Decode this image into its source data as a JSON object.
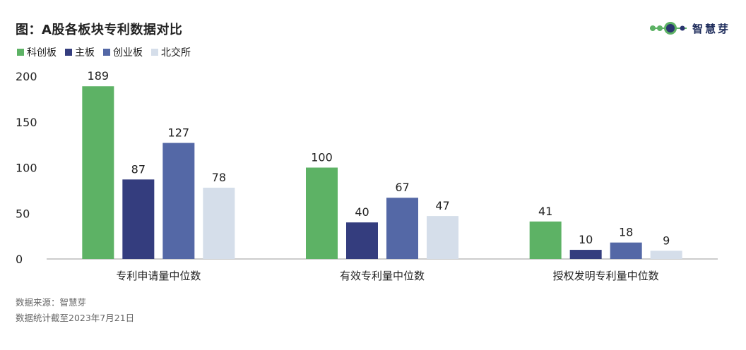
{
  "header": {
    "title": "图：A股各板块专利数据对比",
    "logo_text": "智慧芽"
  },
  "chart_data": {
    "type": "bar",
    "title": "图：A股各板块专利数据对比",
    "categories": [
      "专利申请量中位数",
      "有效专利量中位数",
      "授权发明专利量中位数"
    ],
    "series": [
      {
        "name": "科创板",
        "color": "#5db265",
        "values": [
          189,
          100,
          41
        ]
      },
      {
        "name": "主板",
        "color": "#343d7e",
        "values": [
          87,
          40,
          10
        ]
      },
      {
        "name": "创业板",
        "color": "#5468a6",
        "values": [
          127,
          67,
          18
        ]
      },
      {
        "name": "北交所",
        "color": "#d5deea",
        "values": [
          78,
          47,
          9
        ]
      }
    ],
    "ylim": [
      0,
      200
    ],
    "yticks": [
      0,
      50,
      100,
      150,
      200
    ],
    "grid": false,
    "legend_position": "top-left",
    "xlabel": "",
    "ylabel": ""
  },
  "footer": {
    "source": "数据来源：智慧芽",
    "note": "数据统计截至2023年7月21日"
  }
}
